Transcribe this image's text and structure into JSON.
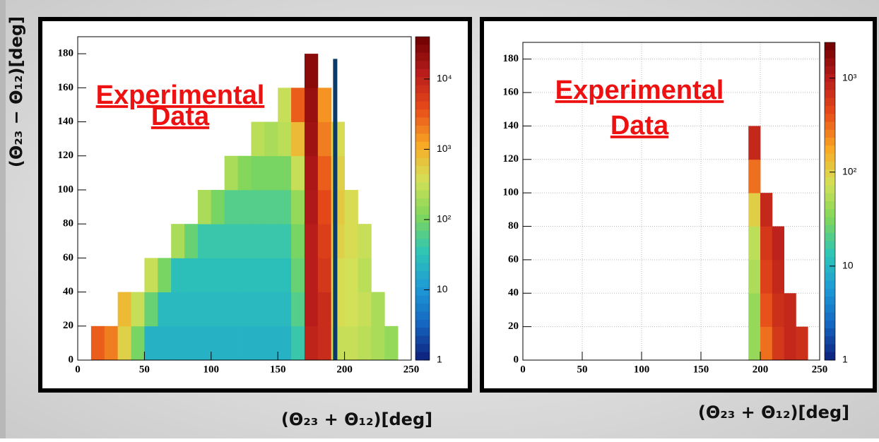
{
  "chart_data": [
    {
      "type": "heatmap",
      "annotation": [
        "Experimental",
        "Data"
      ],
      "x_label": "(Θ₂₃ + Θ₁₂)[deg]",
      "y_label": "(Θ₂₃ − Θ₁₂)[deg]",
      "xlim": [
        0,
        250
      ],
      "ylim": [
        0,
        190
      ],
      "xticks": [
        0,
        50,
        100,
        150,
        200,
        250
      ],
      "yticks": [
        0,
        20,
        40,
        60,
        80,
        100,
        120,
        140,
        160,
        180
      ],
      "grid": false,
      "zlim": [
        1,
        40000
      ],
      "log_z": true,
      "zticks": [
        1,
        10,
        {
          "value": 100,
          "label": "10²"
        },
        {
          "value": 1000,
          "label": "10³"
        },
        {
          "value": 10000,
          "label": "10⁴"
        }
      ],
      "colors": [
        "#0d1f7a",
        "#1565c0",
        "#1e9ad6",
        "#2ec4b6",
        "#7fd65b",
        "#d4e157",
        "#f9a825",
        "#e64a19",
        "#b71c1c",
        "#6d0000"
      ],
      "vline": 193,
      "vline_top": 177,
      "vline_color": "#0b3a66",
      "x_bins": [
        0,
        10,
        20,
        30,
        40,
        50,
        60,
        70,
        80,
        90,
        100,
        110,
        120,
        130,
        140,
        150,
        160,
        170,
        180,
        190,
        200,
        210,
        220,
        230,
        240,
        250
      ],
      "y_bins": [
        0,
        20,
        40,
        60,
        80,
        100,
        120,
        140,
        160,
        180
      ],
      "z": [
        [
          null,
          3000,
          2000,
          500,
          100,
          20,
          20,
          20,
          20,
          20,
          20,
          20,
          20,
          20,
          20,
          20,
          40,
          10000,
          8000,
          300,
          300,
          250,
          200,
          150,
          null
        ],
        [
          null,
          null,
          null,
          800,
          300,
          80,
          25,
          25,
          25,
          25,
          25,
          25,
          25,
          25,
          25,
          25,
          60,
          12000,
          8000,
          400,
          350,
          300,
          200,
          null,
          null
        ],
        [
          null,
          null,
          null,
          null,
          null,
          300,
          100,
          30,
          30,
          30,
          30,
          30,
          30,
          30,
          30,
          30,
          80,
          12000,
          6000,
          400,
          350,
          250,
          null,
          null,
          null
        ],
        [
          null,
          null,
          null,
          null,
          null,
          null,
          null,
          200,
          80,
          40,
          40,
          40,
          40,
          40,
          40,
          40,
          100,
          12000,
          5000,
          500,
          400,
          300,
          null,
          null,
          null
        ],
        [
          null,
          null,
          null,
          null,
          null,
          null,
          null,
          null,
          null,
          200,
          100,
          60,
          60,
          60,
          60,
          60,
          150,
          14000,
          4000,
          600,
          400,
          null,
          null,
          null,
          null
        ],
        [
          null,
          null,
          null,
          null,
          null,
          null,
          null,
          null,
          null,
          null,
          null,
          200,
          120,
          100,
          100,
          100,
          300,
          15000,
          3000,
          500,
          null,
          null,
          null,
          null,
          null
        ],
        [
          null,
          null,
          null,
          null,
          null,
          null,
          null,
          null,
          null,
          null,
          null,
          null,
          null,
          250,
          200,
          250,
          800,
          18000,
          2000,
          400,
          null,
          null,
          null,
          null,
          null
        ],
        [
          null,
          null,
          null,
          null,
          null,
          null,
          null,
          null,
          null,
          null,
          null,
          null,
          null,
          null,
          null,
          300,
          3000,
          20000,
          1500,
          null,
          null,
          null,
          null,
          null,
          null
        ],
        [
          null,
          null,
          null,
          null,
          null,
          null,
          null,
          null,
          null,
          null,
          null,
          null,
          null,
          null,
          null,
          null,
          null,
          25000,
          null,
          null,
          null,
          null,
          null,
          null,
          null
        ]
      ]
    },
    {
      "type": "heatmap",
      "annotation": [
        "Experimental",
        "Data"
      ],
      "x_label": "(Θ₂₃ + Θ₁₂)[deg]",
      "xlim": [
        0,
        250
      ],
      "ylim": [
        0,
        190
      ],
      "xticks": [
        0,
        50,
        100,
        150,
        200,
        250
      ],
      "yticks": [
        0,
        20,
        40,
        60,
        80,
        100,
        120,
        140,
        160,
        180
      ],
      "grid": true,
      "zlim": [
        1,
        2400
      ],
      "log_z": true,
      "zticks": [
        1,
        10,
        {
          "value": 100,
          "label": "10²"
        },
        {
          "value": 1000,
          "label": "10³"
        }
      ],
      "colors": [
        "#0d1f7a",
        "#1565c0",
        "#1e9ad6",
        "#2ec4b6",
        "#7fd65b",
        "#d4e157",
        "#f9a825",
        "#e64a19",
        "#b71c1c",
        "#6d0000"
      ],
      "x_bins": [
        0,
        10,
        20,
        30,
        40,
        50,
        60,
        70,
        80,
        90,
        100,
        110,
        120,
        130,
        140,
        150,
        160,
        170,
        180,
        190,
        200,
        210,
        220,
        230,
        240,
        250
      ],
      "y_bins": [
        0,
        20,
        40,
        60,
        80,
        100,
        120,
        140,
        160,
        180
      ],
      "z": [
        [
          null,
          null,
          null,
          null,
          null,
          null,
          null,
          null,
          null,
          null,
          null,
          null,
          null,
          null,
          null,
          null,
          null,
          null,
          null,
          40,
          300,
          600,
          800,
          700,
          null
        ],
        [
          null,
          null,
          null,
          null,
          null,
          null,
          null,
          null,
          null,
          null,
          null,
          null,
          null,
          null,
          null,
          null,
          null,
          null,
          null,
          40,
          400,
          700,
          800,
          null,
          null
        ],
        [
          null,
          null,
          null,
          null,
          null,
          null,
          null,
          null,
          null,
          null,
          null,
          null,
          null,
          null,
          null,
          null,
          null,
          null,
          null,
          50,
          500,
          800,
          null,
          null,
          null
        ],
        [
          null,
          null,
          null,
          null,
          null,
          null,
          null,
          null,
          null,
          null,
          null,
          null,
          null,
          null,
          null,
          null,
          null,
          null,
          null,
          60,
          600,
          900,
          null,
          null,
          null
        ],
        [
          null,
          null,
          null,
          null,
          null,
          null,
          null,
          null,
          null,
          null,
          null,
          null,
          null,
          null,
          null,
          null,
          null,
          null,
          null,
          100,
          800,
          null,
          null,
          null,
          null
        ],
        [
          null,
          null,
          null,
          null,
          null,
          null,
          null,
          null,
          null,
          null,
          null,
          null,
          null,
          null,
          null,
          null,
          null,
          null,
          null,
          300,
          null,
          null,
          null,
          null,
          null
        ],
        [
          null,
          null,
          null,
          null,
          null,
          null,
          null,
          null,
          null,
          null,
          null,
          null,
          null,
          null,
          null,
          null,
          null,
          null,
          null,
          800,
          null,
          null,
          null,
          null,
          null
        ],
        [
          null,
          null,
          null,
          null,
          null,
          null,
          null,
          null,
          null,
          null,
          null,
          null,
          null,
          null,
          null,
          null,
          null,
          null,
          null,
          null,
          null,
          null,
          null,
          null,
          null
        ],
        [
          null,
          null,
          null,
          null,
          null,
          null,
          null,
          null,
          null,
          null,
          null,
          null,
          null,
          null,
          null,
          null,
          null,
          null,
          null,
          null,
          null,
          null,
          null,
          null,
          null
        ]
      ]
    }
  ]
}
